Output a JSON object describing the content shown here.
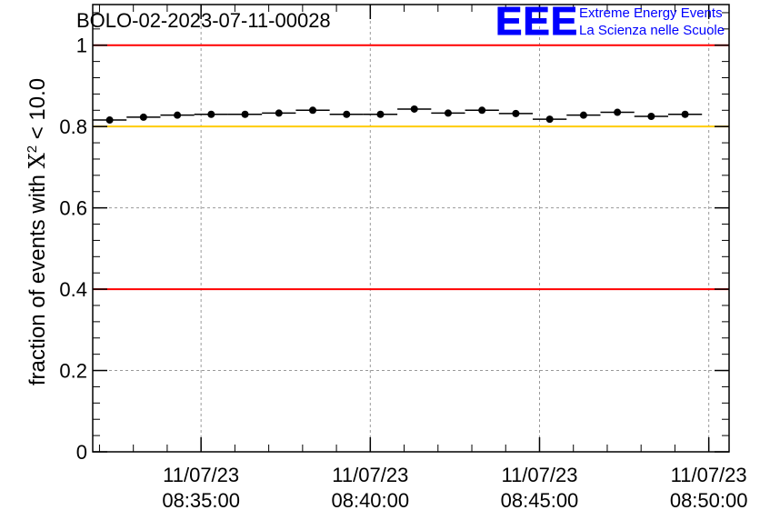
{
  "title": "BOLO-02-2023-07-11-00028",
  "logo": {
    "mark": "EEE",
    "line1": "Extreme Energy Events",
    "line2": "La Scienza nelle Scuole",
    "color": "#0000ff"
  },
  "chart_data": {
    "type": "scatter",
    "title": "BOLO-02-2023-07-11-00028",
    "ylabel_prefix": "fraction of events with ",
    "ylabel_symbol": "X",
    "ylabel_sup": "2",
    "ylabel_suffix": " < 10.0",
    "xlabel": "",
    "ylim": [
      0,
      1.1
    ],
    "yticks": [
      0,
      0.2,
      0.4,
      0.6,
      0.8,
      1
    ],
    "ytick_labels": [
      "0",
      "0.2",
      "0.4",
      "0.6",
      "0.8",
      "1"
    ],
    "xlim_minutes": [
      31.8,
      50.6
    ],
    "xticks": [
      {
        "minute": 35,
        "date": "11/07/23",
        "time": "08:35:00"
      },
      {
        "minute": 40,
        "date": "11/07/23",
        "time": "08:40:00"
      },
      {
        "minute": 45,
        "date": "11/07/23",
        "time": "08:45:00"
      },
      {
        "minute": 50,
        "date": "11/07/23",
        "time": "08:50:00"
      }
    ],
    "grid": true,
    "bin_width_minutes": 1,
    "points": [
      {
        "minute": 32.3,
        "y": 0.816
      },
      {
        "minute": 33.3,
        "y": 0.823
      },
      {
        "minute": 34.3,
        "y": 0.828
      },
      {
        "minute": 35.3,
        "y": 0.83
      },
      {
        "minute": 36.3,
        "y": 0.83
      },
      {
        "minute": 37.3,
        "y": 0.833
      },
      {
        "minute": 38.3,
        "y": 0.84
      },
      {
        "minute": 39.3,
        "y": 0.83
      },
      {
        "minute": 40.3,
        "y": 0.83
      },
      {
        "minute": 41.3,
        "y": 0.843
      },
      {
        "minute": 42.3,
        "y": 0.833
      },
      {
        "minute": 43.3,
        "y": 0.84
      },
      {
        "minute": 44.3,
        "y": 0.832
      },
      {
        "minute": 45.3,
        "y": 0.818
      },
      {
        "minute": 46.3,
        "y": 0.828
      },
      {
        "minute": 47.3,
        "y": 0.835
      },
      {
        "minute": 48.3,
        "y": 0.825
      },
      {
        "minute": 49.3,
        "y": 0.83
      }
    ],
    "reference_lines": [
      {
        "y": 1.0,
        "color": "#ff0000"
      },
      {
        "y": 0.8,
        "color": "#ffcc00"
      },
      {
        "y": 0.4,
        "color": "#ff0000"
      }
    ]
  }
}
